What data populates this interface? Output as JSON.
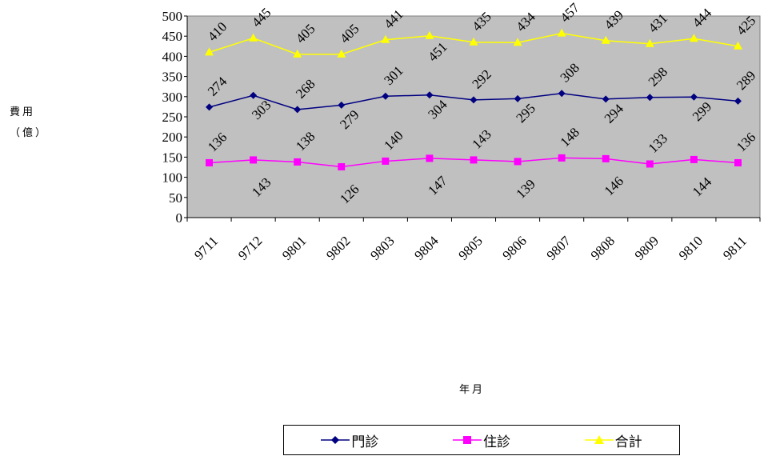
{
  "chart_data": {
    "type": "line",
    "title": "",
    "ylabel": "費用\n(億)",
    "xlabel": "年月",
    "categories": [
      "9711",
      "9712",
      "9801",
      "9802",
      "9803",
      "9804",
      "9805",
      "9806",
      "9807",
      "9808",
      "9809",
      "9810",
      "9811"
    ],
    "ylim": [
      0,
      500
    ],
    "yticks": [
      0,
      50,
      100,
      150,
      200,
      250,
      300,
      350,
      400,
      450,
      500
    ],
    "grid": false,
    "legend_position": "bottom",
    "plot_background": "#C0C0C0",
    "series": [
      {
        "name": "門診",
        "color": "#000080",
        "marker": "diamond",
        "values": [
          274,
          303,
          268,
          279,
          301,
          304,
          292,
          295,
          308,
          294,
          298,
          299,
          289
        ],
        "labels": [
          "274",
          "303",
          "268",
          "279",
          "301",
          "304",
          "292",
          "295",
          "308",
          "294",
          "298",
          "299",
          "289"
        ]
      },
      {
        "name": "住診",
        "color": "#FF00FF",
        "marker": "square",
        "values": [
          136,
          143,
          138,
          126,
          140,
          147,
          143,
          139,
          148,
          146,
          133,
          144,
          136
        ],
        "labels": [
          "136",
          "143",
          "138",
          "126",
          "140",
          "147",
          "143",
          "139",
          "148",
          "146",
          "133",
          "144",
          "136"
        ]
      },
      {
        "name": "合計",
        "color": "#FFFF00",
        "marker": "triangle",
        "values": [
          410,
          445,
          405,
          405,
          441,
          451,
          435,
          434,
          457,
          439,
          431,
          444,
          425
        ],
        "labels": [
          "410",
          "445",
          "405",
          "405",
          "441",
          "451",
          "435",
          "434",
          "457",
          "439",
          "431",
          "444",
          "425"
        ]
      }
    ]
  }
}
